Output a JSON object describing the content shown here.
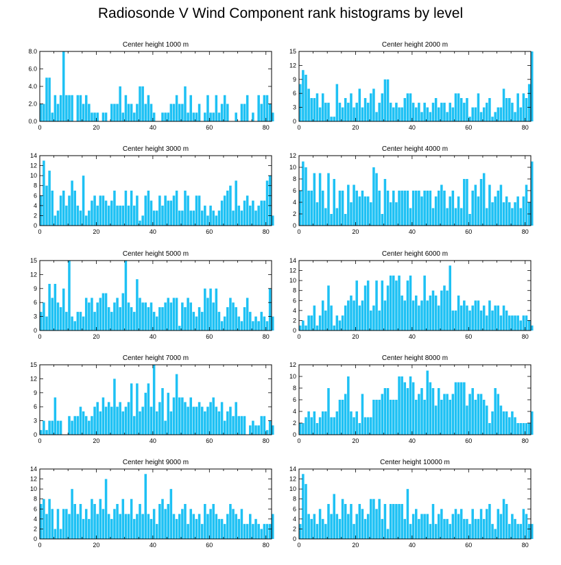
{
  "title": "Radiosonde V Wind Component rank histograms by level",
  "colors": {
    "bar": "#1ec1f4",
    "frame": "#000000"
  },
  "chart_data": [
    {
      "type": "bar",
      "title": "Center height 1000 m",
      "xlim": [
        0,
        82
      ],
      "ylim": [
        0,
        8
      ],
      "xticks": [
        0,
        20,
        40,
        60,
        80
      ],
      "yticks": [
        "0.0",
        "2.0",
        "4.0",
        "6.0",
        "8.0"
      ],
      "values": [
        2,
        2,
        5,
        5,
        1,
        3,
        2,
        3,
        8,
        3,
        3,
        3,
        0,
        3,
        3,
        2,
        3,
        2,
        1,
        1,
        1,
        0,
        1,
        1,
        0,
        2,
        2,
        2,
        4,
        1,
        3,
        2,
        2,
        1,
        2,
        4,
        4,
        2,
        3,
        2,
        1,
        0,
        0,
        1,
        1,
        1,
        2,
        2,
        3,
        2,
        2,
        4,
        1,
        3,
        1,
        1,
        2,
        0,
        1,
        3,
        1,
        1,
        3,
        1,
        2,
        3,
        2,
        0,
        0,
        1,
        0,
        2,
        2,
        3,
        0,
        1,
        0,
        3,
        2,
        3,
        3,
        2,
        1
      ]
    },
    {
      "type": "bar",
      "title": "Center height 2000 m",
      "xlim": [
        0,
        82
      ],
      "ylim": [
        0,
        15
      ],
      "xticks": [
        0,
        20,
        40,
        60,
        80
      ],
      "yticks": [
        "0",
        "3",
        "6",
        "9",
        "12",
        "15"
      ],
      "values": [
        8,
        11,
        10,
        7,
        5,
        5,
        6,
        3,
        6,
        4,
        4,
        1,
        1,
        8,
        4,
        3,
        5,
        4,
        6,
        3,
        4,
        7,
        3,
        5,
        4,
        6,
        7,
        2,
        4,
        6,
        9,
        9,
        4,
        3,
        4,
        3,
        3,
        5,
        6,
        6,
        4,
        3,
        4,
        2,
        4,
        3,
        2,
        4,
        5,
        3,
        4,
        4,
        2,
        4,
        3,
        6,
        6,
        5,
        4,
        5,
        1,
        3,
        3,
        6,
        2,
        3,
        4,
        5,
        1,
        2,
        3,
        3,
        7,
        5,
        5,
        4,
        2,
        6,
        3,
        6,
        5,
        8,
        15
      ]
    },
    {
      "type": "bar",
      "title": "Center height 3000 m",
      "xlim": [
        0,
        82
      ],
      "ylim": [
        0,
        14
      ],
      "xticks": [
        0,
        20,
        40,
        60,
        80
      ],
      "yticks": [
        "0",
        "2",
        "4",
        "6",
        "8",
        "10",
        "12",
        "14"
      ],
      "values": [
        6,
        13,
        8,
        11,
        7,
        2,
        3,
        6,
        7,
        4,
        6,
        9,
        7,
        4,
        3,
        10,
        2,
        3,
        5,
        6,
        4,
        6,
        6,
        5,
        4,
        5,
        7,
        4,
        4,
        4,
        7,
        4,
        7,
        4,
        6,
        1,
        2,
        6,
        7,
        5,
        3,
        3,
        6,
        4,
        6,
        5,
        5,
        6,
        7,
        3,
        3,
        7,
        6,
        3,
        3,
        6,
        6,
        3,
        4,
        2,
        4,
        3,
        2,
        3,
        5,
        6,
        7,
        8,
        3,
        9,
        4,
        3,
        5,
        6,
        4,
        5,
        3,
        4,
        5,
        5,
        9,
        10,
        2
      ]
    },
    {
      "type": "bar",
      "title": "Center height 4000 m",
      "xlim": [
        0,
        82
      ],
      "ylim": [
        0,
        12
      ],
      "xticks": [
        0,
        20,
        40,
        60,
        80
      ],
      "yticks": [
        "0",
        "2",
        "4",
        "6",
        "8",
        "10",
        "12"
      ],
      "values": [
        6,
        11,
        10,
        6,
        6,
        9,
        4,
        9,
        6,
        3,
        9,
        2,
        8,
        3,
        6,
        6,
        2,
        7,
        4,
        7,
        6,
        5,
        6,
        5,
        5,
        4,
        10,
        9,
        6,
        2,
        8,
        6,
        4,
        6,
        4,
        6,
        6,
        6,
        6,
        3,
        6,
        6,
        6,
        5,
        6,
        6,
        6,
        3,
        5,
        6,
        7,
        6,
        3,
        5,
        6,
        3,
        5,
        3,
        8,
        8,
        2,
        6,
        7,
        5,
        8,
        9,
        3,
        7,
        4,
        5,
        6,
        7,
        4,
        5,
        4,
        3,
        4,
        5,
        3,
        5,
        7,
        4,
        11
      ]
    },
    {
      "type": "bar",
      "title": "Center height 5000 m",
      "xlim": [
        0,
        82
      ],
      "ylim": [
        0,
        15
      ],
      "xticks": [
        0,
        20,
        40,
        60,
        80
      ],
      "yticks": [
        "0",
        "3",
        "6",
        "9",
        "12",
        "15"
      ],
      "values": [
        4,
        6,
        3,
        10,
        7,
        10,
        6,
        5,
        9,
        4,
        15,
        3,
        2,
        4,
        4,
        3,
        7,
        6,
        7,
        4,
        6,
        7,
        8,
        8,
        5,
        4,
        6,
        7,
        5,
        8,
        15,
        6,
        5,
        4,
        11,
        7,
        6,
        6,
        5,
        6,
        4,
        3,
        5,
        5,
        6,
        7,
        6,
        7,
        7,
        1,
        6,
        5,
        7,
        6,
        4,
        3,
        5,
        4,
        9,
        7,
        9,
        6,
        9,
        4,
        2,
        3,
        5,
        7,
        6,
        5,
        3,
        2,
        5,
        7,
        4,
        2,
        3,
        2,
        4,
        3,
        2,
        9,
        3
      ]
    },
    {
      "type": "bar",
      "title": "Center height 6000 m",
      "xlim": [
        0,
        82
      ],
      "ylim": [
        0,
        14
      ],
      "xticks": [
        0,
        20,
        40,
        60,
        80
      ],
      "yticks": [
        "0",
        "2",
        "4",
        "6",
        "8",
        "10",
        "12",
        "14"
      ],
      "values": [
        1,
        2,
        1,
        3,
        3,
        5,
        1,
        3,
        6,
        4,
        9,
        5,
        1,
        3,
        2,
        3,
        5,
        6,
        7,
        6,
        10,
        5,
        6,
        9,
        10,
        4,
        5,
        10,
        4,
        10,
        6,
        9,
        11,
        11,
        10,
        11,
        7,
        6,
        10,
        11,
        6,
        7,
        5,
        6,
        11,
        6,
        7,
        8,
        7,
        5,
        8,
        9,
        8,
        13,
        4,
        4,
        7,
        5,
        6,
        5,
        4,
        5,
        6,
        6,
        4,
        5,
        3,
        6,
        4,
        5,
        5,
        3,
        5,
        4,
        3,
        3,
        3,
        3,
        2,
        3,
        3,
        2,
        1
      ]
    },
    {
      "type": "bar",
      "title": "Center height 7000 m",
      "xlim": [
        0,
        82
      ],
      "ylim": [
        0,
        15
      ],
      "xticks": [
        0,
        20,
        40,
        60,
        80
      ],
      "yticks": [
        "0",
        "3",
        "6",
        "9",
        "12",
        "15"
      ],
      "values": [
        1,
        3,
        1,
        3,
        3,
        8,
        3,
        3,
        0,
        0,
        4,
        3,
        4,
        4,
        6,
        5,
        4,
        3,
        4,
        6,
        7,
        5,
        8,
        6,
        7,
        6,
        12,
        6,
        7,
        5,
        6,
        7,
        11,
        4,
        11,
        5,
        6,
        9,
        11,
        6,
        15,
        5,
        7,
        10,
        3,
        9,
        5,
        8,
        13,
        8,
        8,
        7,
        6,
        8,
        6,
        6,
        7,
        6,
        5,
        6,
        7,
        8,
        6,
        5,
        7,
        3,
        5,
        6,
        4,
        7,
        4,
        4,
        4,
        0,
        2,
        3,
        2,
        2,
        4,
        4,
        1,
        3,
        2
      ]
    },
    {
      "type": "bar",
      "title": "Center height 8000 m",
      "xlim": [
        0,
        82
      ],
      "ylim": [
        0,
        12
      ],
      "xticks": [
        0,
        20,
        40,
        60,
        80
      ],
      "yticks": [
        "0",
        "2",
        "4",
        "6",
        "8",
        "10",
        "12"
      ],
      "values": [
        2,
        2,
        3,
        4,
        3,
        4,
        2,
        3,
        4,
        4,
        8,
        3,
        3,
        4,
        6,
        6,
        7,
        10,
        4,
        3,
        4,
        2,
        7,
        3,
        3,
        3,
        6,
        6,
        6,
        7,
        8,
        8,
        6,
        6,
        6,
        10,
        10,
        9,
        8,
        10,
        9,
        6,
        7,
        8,
        6,
        11,
        9,
        8,
        5,
        8,
        6,
        7,
        7,
        6,
        7,
        9,
        9,
        9,
        9,
        5,
        7,
        8,
        6,
        7,
        7,
        6,
        5,
        2,
        4,
        8,
        7,
        5,
        4,
        4,
        3,
        4,
        3,
        2,
        2,
        2,
        2,
        2,
        4
      ]
    },
    {
      "type": "bar",
      "title": "Center height 9000 m",
      "xlim": [
        0,
        82
      ],
      "ylim": [
        0,
        14
      ],
      "xticks": [
        0,
        20,
        40,
        60,
        80
      ],
      "yticks": [
        "0",
        "2",
        "4",
        "6",
        "8",
        "10",
        "12",
        "14"
      ],
      "values": [
        7,
        8,
        5,
        8,
        6,
        2,
        6,
        2,
        6,
        6,
        5,
        10,
        7,
        5,
        7,
        4,
        6,
        4,
        8,
        7,
        5,
        8,
        6,
        12,
        5,
        4,
        6,
        7,
        5,
        8,
        5,
        5,
        8,
        4,
        5,
        7,
        5,
        13,
        5,
        4,
        6,
        3,
        7,
        8,
        6,
        7,
        10,
        5,
        4,
        5,
        6,
        7,
        3,
        6,
        5,
        4,
        5,
        3,
        7,
        5,
        6,
        7,
        5,
        4,
        4,
        3,
        5,
        7,
        6,
        5,
        4,
        6,
        3,
        3,
        5,
        3,
        4,
        3,
        2,
        3,
        3,
        3,
        5
      ]
    },
    {
      "type": "bar",
      "title": "Center height 10000 m",
      "xlim": [
        0,
        82
      ],
      "ylim": [
        0,
        14
      ],
      "xticks": [
        0,
        20,
        40,
        60,
        80
      ],
      "yticks": [
        "0",
        "2",
        "4",
        "6",
        "8",
        "10",
        "12",
        "14"
      ],
      "values": [
        3,
        13,
        11,
        5,
        4,
        5,
        3,
        6,
        4,
        3,
        7,
        5,
        9,
        5,
        4,
        8,
        7,
        5,
        7,
        3,
        5,
        7,
        6,
        4,
        5,
        8,
        8,
        6,
        8,
        4,
        7,
        2,
        7,
        7,
        7,
        7,
        7,
        4,
        10,
        3,
        5,
        6,
        4,
        5,
        5,
        5,
        3,
        7,
        3,
        5,
        6,
        4,
        4,
        3,
        5,
        6,
        5,
        6,
        4,
        4,
        3,
        6,
        4,
        4,
        6,
        4,
        6,
        7,
        3,
        2,
        6,
        5,
        8,
        7,
        3,
        5,
        4,
        3,
        3,
        6,
        5,
        3,
        3
      ]
    }
  ]
}
